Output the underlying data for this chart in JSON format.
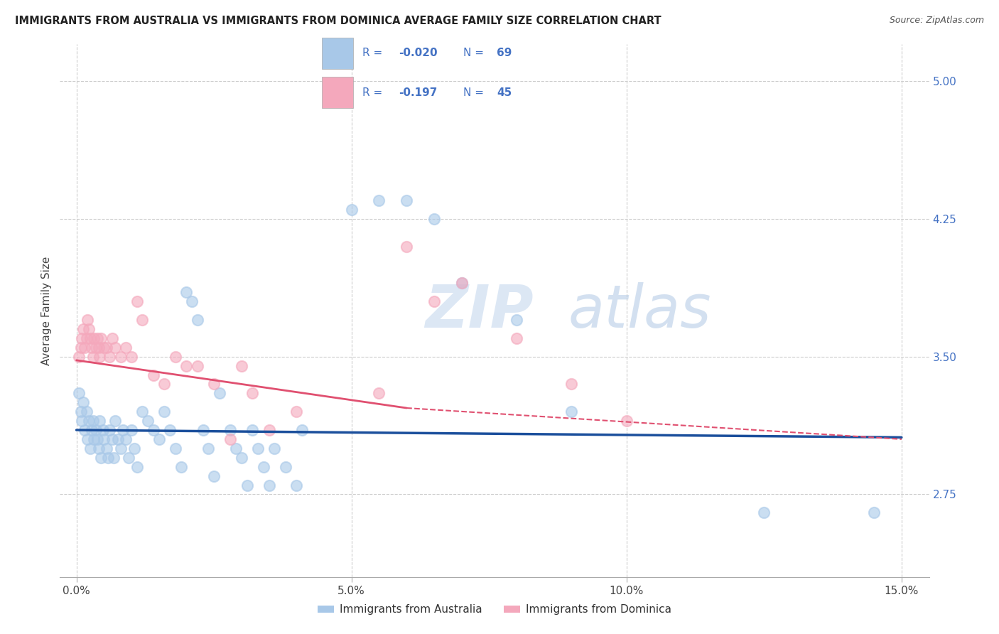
{
  "title": "IMMIGRANTS FROM AUSTRALIA VS IMMIGRANTS FROM DOMINICA AVERAGE FAMILY SIZE CORRELATION CHART",
  "source": "Source: ZipAtlas.com",
  "ylabel": "Average Family Size",
  "xlabel_ticks": [
    "0.0%",
    "5.0%",
    "10.0%",
    "15.0%"
  ],
  "xlabel_vals": [
    0.0,
    5.0,
    10.0,
    15.0
  ],
  "xlim": [
    -0.3,
    15.5
  ],
  "ylim": [
    2.3,
    5.2
  ],
  "yticks": [
    2.75,
    3.5,
    4.25,
    5.0
  ],
  "legend_label1": "Immigrants from Australia",
  "legend_label2": "Immigrants from Dominica",
  "r1": -0.02,
  "n1": 69,
  "r2": -0.197,
  "n2": 45,
  "color_blue": "#A8C8E8",
  "color_pink": "#F4A8BC",
  "color_blue_line": "#1B4F9C",
  "color_pink_line": "#E05070",
  "background_color": "#FFFFFF",
  "grid_color": "#CCCCCC",
  "watermark_zip": "ZIP",
  "watermark_atlas": "atlas",
  "title_color": "#222222",
  "axis_label_color": "#4472C4",
  "legend_text_color": "#4472C4",
  "aus_x": [
    0.05,
    0.08,
    0.1,
    0.12,
    0.15,
    0.18,
    0.2,
    0.22,
    0.25,
    0.28,
    0.3,
    0.32,
    0.35,
    0.38,
    0.4,
    0.42,
    0.45,
    0.48,
    0.5,
    0.55,
    0.58,
    0.6,
    0.65,
    0.68,
    0.7,
    0.75,
    0.8,
    0.85,
    0.9,
    0.95,
    1.0,
    1.05,
    1.1,
    1.2,
    1.3,
    1.4,
    1.5,
    1.6,
    1.7,
    1.8,
    1.9,
    2.0,
    2.1,
    2.2,
    2.3,
    2.4,
    2.5,
    2.6,
    2.8,
    2.9,
    3.0,
    3.1,
    3.2,
    3.3,
    3.4,
    3.5,
    3.6,
    3.8,
    4.0,
    4.1,
    5.0,
    5.5,
    6.0,
    6.5,
    7.0,
    8.0,
    9.0,
    12.5,
    14.5
  ],
  "aus_y": [
    3.3,
    3.2,
    3.15,
    3.25,
    3.1,
    3.2,
    3.05,
    3.15,
    3.0,
    3.1,
    3.15,
    3.05,
    3.1,
    3.05,
    3.0,
    3.15,
    2.95,
    3.1,
    3.05,
    3.0,
    2.95,
    3.1,
    3.05,
    2.95,
    3.15,
    3.05,
    3.0,
    3.1,
    3.05,
    2.95,
    3.1,
    3.0,
    2.9,
    3.2,
    3.15,
    3.1,
    3.05,
    3.2,
    3.1,
    3.0,
    2.9,
    3.85,
    3.8,
    3.7,
    3.1,
    3.0,
    2.85,
    3.3,
    3.1,
    3.0,
    2.95,
    2.8,
    3.1,
    3.0,
    2.9,
    2.8,
    3.0,
    2.9,
    2.8,
    3.1,
    4.3,
    4.35,
    4.35,
    4.25,
    3.9,
    3.7,
    3.2,
    2.65,
    2.65
  ],
  "dom_x": [
    0.05,
    0.08,
    0.1,
    0.12,
    0.15,
    0.18,
    0.2,
    0.22,
    0.25,
    0.28,
    0.3,
    0.32,
    0.35,
    0.38,
    0.4,
    0.42,
    0.45,
    0.5,
    0.55,
    0.6,
    0.65,
    0.7,
    0.8,
    0.9,
    1.0,
    1.1,
    1.2,
    1.4,
    1.6,
    1.8,
    2.0,
    2.2,
    2.5,
    2.8,
    3.0,
    3.2,
    3.5,
    4.0,
    5.5,
    6.0,
    6.5,
    7.0,
    8.0,
    9.0,
    10.0
  ],
  "dom_y": [
    3.5,
    3.55,
    3.6,
    3.65,
    3.55,
    3.6,
    3.7,
    3.65,
    3.6,
    3.55,
    3.5,
    3.6,
    3.55,
    3.6,
    3.55,
    3.5,
    3.6,
    3.55,
    3.55,
    3.5,
    3.6,
    3.55,
    3.5,
    3.55,
    3.5,
    3.8,
    3.7,
    3.4,
    3.35,
    3.5,
    3.45,
    3.45,
    3.35,
    3.05,
    3.45,
    3.3,
    3.1,
    3.2,
    3.3,
    4.1,
    3.8,
    3.9,
    3.6,
    3.35,
    3.15
  ],
  "dom_solid_end": 6.0,
  "aus_line_y_at_0": 3.1,
  "aus_line_y_at_15": 3.06,
  "dom_line_y_at_0": 3.48,
  "dom_line_y_at_6": 3.22,
  "dom_line_y_at_15": 3.05
}
